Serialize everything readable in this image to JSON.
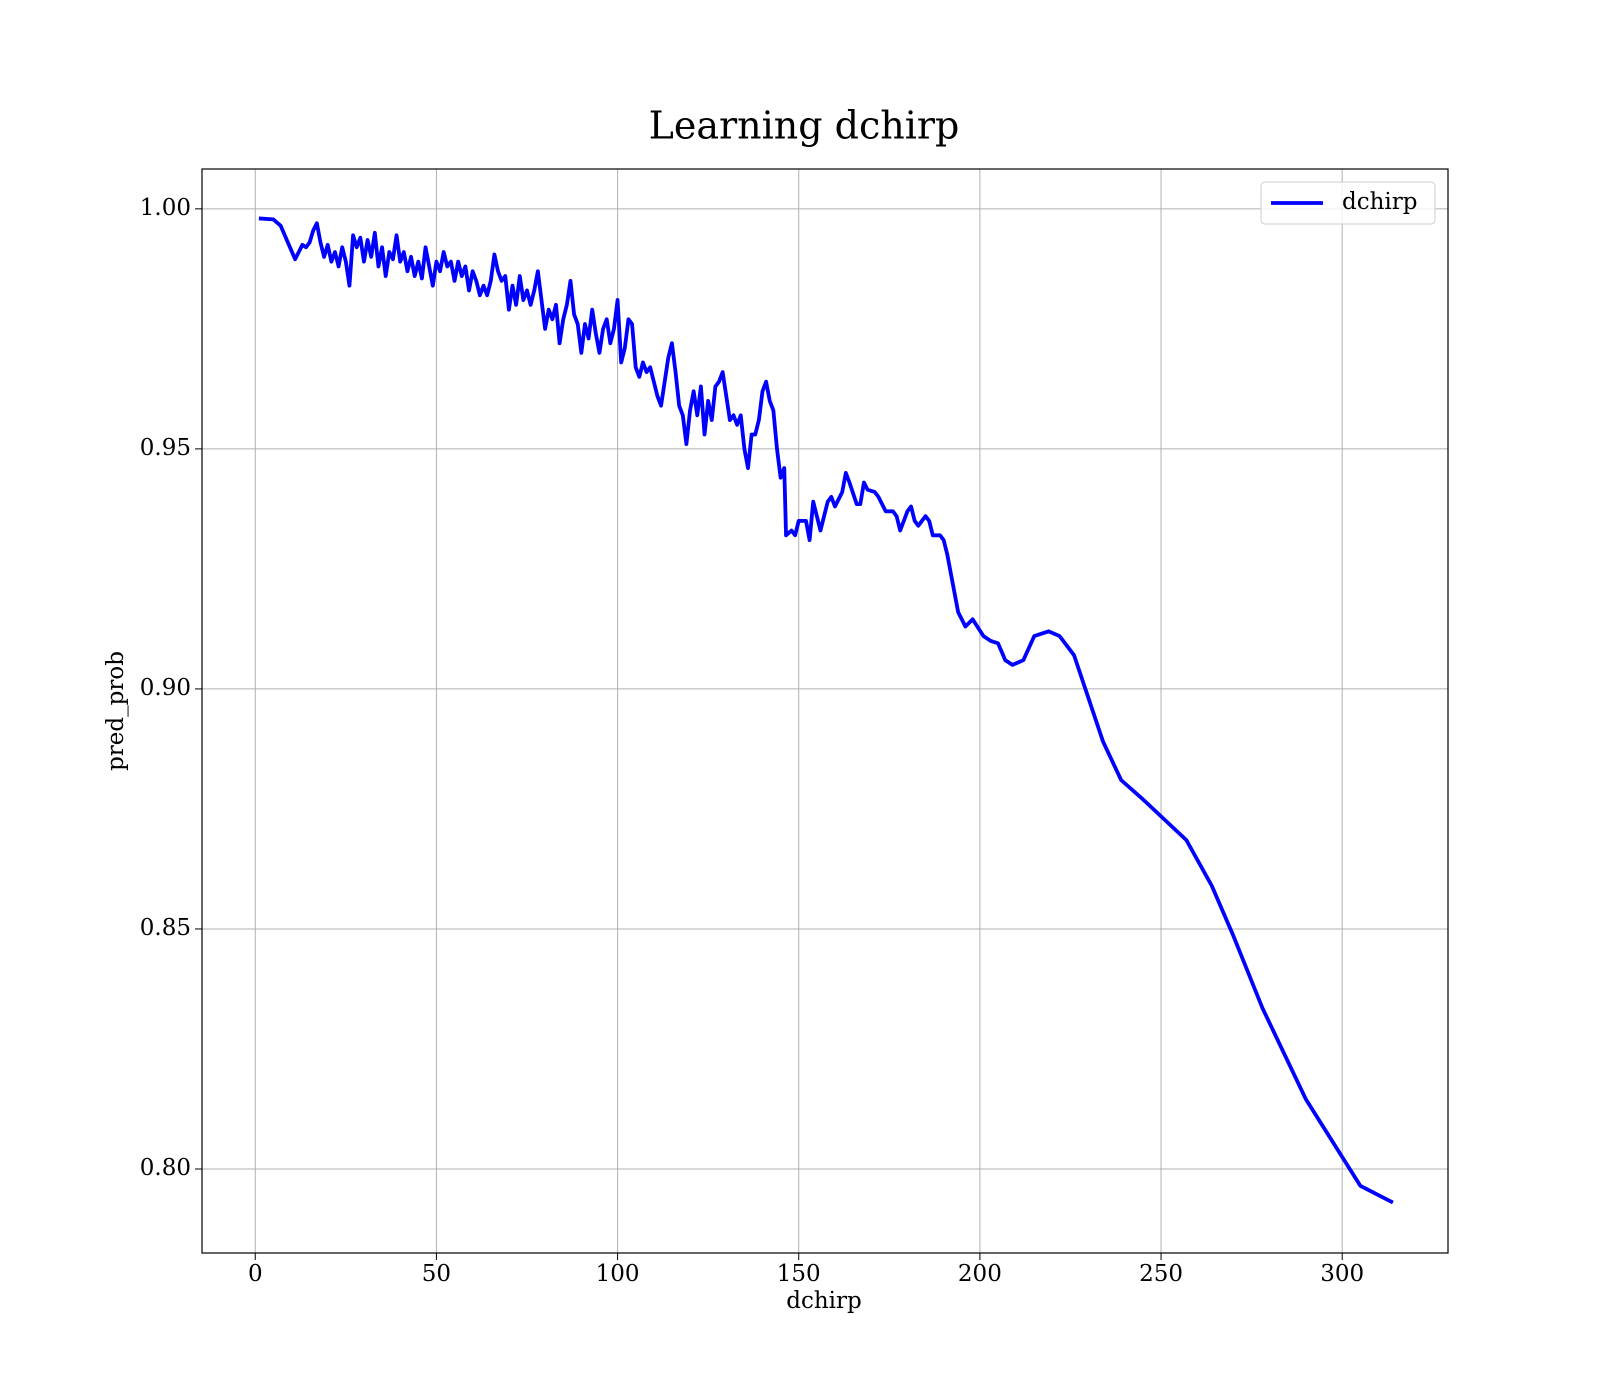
{
  "chart_data": {
    "type": "line",
    "title": "Learning dchirp",
    "xlabel": "dchirp",
    "ylabel": "pred_prob",
    "x": [
      1,
      5,
      7,
      9,
      11,
      12,
      13,
      14,
      15,
      16,
      17,
      18,
      19,
      20,
      21,
      22,
      23,
      24,
      25,
      26,
      27,
      28,
      29,
      30,
      31,
      32,
      33,
      34,
      35,
      36,
      37,
      38,
      39,
      40,
      41,
      42,
      43,
      44,
      45,
      46,
      47,
      48,
      49,
      50,
      51,
      52,
      53,
      54,
      55,
      56,
      57,
      58,
      59,
      60,
      61,
      62,
      63,
      64,
      65,
      66,
      67,
      68,
      69,
      70,
      71,
      72,
      73,
      74,
      75,
      76,
      77,
      78,
      79,
      80,
      81,
      82,
      83,
      84,
      85,
      86,
      87,
      88,
      89,
      90,
      91,
      92,
      93,
      94,
      95,
      96,
      97,
      98,
      99,
      100,
      101,
      102,
      103,
      104,
      105,
      106,
      107,
      108,
      109,
      110,
      111,
      112,
      113,
      114,
      115,
      116,
      117,
      118,
      119,
      120,
      121,
      122,
      123,
      124,
      125,
      126,
      127,
      128,
      129,
      130,
      131,
      132,
      133,
      134,
      135,
      136,
      137,
      138,
      139,
      140,
      141,
      142,
      143,
      144,
      145,
      146,
      146.5,
      148,
      149,
      150,
      152,
      153,
      154,
      156,
      158,
      159,
      160,
      162,
      163,
      164,
      166,
      167,
      168,
      169,
      171,
      172,
      174,
      176,
      177,
      178,
      180,
      181,
      182,
      183,
      185,
      186,
      187,
      189,
      190,
      191,
      194,
      196,
      198,
      201,
      203,
      205,
      207,
      209,
      212,
      215,
      219,
      222,
      226,
      230,
      234,
      239,
      245,
      257,
      264,
      270,
      278,
      290,
      305,
      314
    ],
    "series": [
      {
        "name": "dchirp",
        "color": "#0000ff",
        "values": [
          0.998,
          0.9978,
          0.9965,
          0.993,
          0.9895,
          0.991,
          0.9925,
          0.992,
          0.993,
          0.9955,
          0.997,
          0.993,
          0.99,
          0.9925,
          0.989,
          0.991,
          0.988,
          0.992,
          0.989,
          0.984,
          0.9945,
          0.992,
          0.994,
          0.989,
          0.9935,
          0.99,
          0.995,
          0.988,
          0.992,
          0.986,
          0.991,
          0.9895,
          0.9945,
          0.989,
          0.991,
          0.987,
          0.99,
          0.986,
          0.989,
          0.9855,
          0.992,
          0.988,
          0.984,
          0.989,
          0.987,
          0.991,
          0.988,
          0.989,
          0.985,
          0.989,
          0.986,
          0.988,
          0.983,
          0.987,
          0.985,
          0.982,
          0.984,
          0.982,
          0.985,
          0.9905,
          0.987,
          0.985,
          0.986,
          0.979,
          0.984,
          0.98,
          0.986,
          0.981,
          0.983,
          0.98,
          0.983,
          0.987,
          0.981,
          0.975,
          0.979,
          0.977,
          0.98,
          0.972,
          0.977,
          0.98,
          0.985,
          0.978,
          0.976,
          0.97,
          0.976,
          0.973,
          0.979,
          0.974,
          0.97,
          0.975,
          0.977,
          0.972,
          0.975,
          0.981,
          0.968,
          0.971,
          0.977,
          0.976,
          0.967,
          0.965,
          0.968,
          0.966,
          0.967,
          0.964,
          0.961,
          0.959,
          0.964,
          0.969,
          0.972,
          0.966,
          0.959,
          0.957,
          0.951,
          0.958,
          0.962,
          0.957,
          0.963,
          0.953,
          0.96,
          0.956,
          0.963,
          0.964,
          0.966,
          0.961,
          0.956,
          0.957,
          0.955,
          0.957,
          0.95,
          0.946,
          0.953,
          0.953,
          0.956,
          0.962,
          0.964,
          0.96,
          0.958,
          0.95,
          0.944,
          0.946,
          0.932,
          0.933,
          0.932,
          0.935,
          0.935,
          0.931,
          0.939,
          0.933,
          0.939,
          0.94,
          0.938,
          0.941,
          0.945,
          0.943,
          0.9385,
          0.9385,
          0.943,
          0.9415,
          0.941,
          0.94,
          0.937,
          0.937,
          0.936,
          0.933,
          0.937,
          0.938,
          0.935,
          0.934,
          0.936,
          0.935,
          0.932,
          0.932,
          0.931,
          0.928,
          0.916,
          0.913,
          0.9145,
          0.911,
          0.91,
          0.9095,
          0.906,
          0.905,
          0.906,
          0.911,
          0.912,
          0.911,
          0.907,
          0.898,
          0.889,
          0.881,
          0.877,
          0.8685,
          0.859,
          0.8485,
          0.8335,
          0.8145,
          0.7965,
          0.793
        ]
      }
    ],
    "xlim": [
      -14.7,
      329.2
    ],
    "ylim": [
      0.7825,
      1.0083
    ],
    "xticks": [
      0,
      50,
      100,
      150,
      200,
      250,
      300
    ],
    "yticks": [
      {
        "value": 0.8,
        "label": "0.80"
      },
      0.85,
      {
        "value": 0.9,
        "label": "0.90"
      },
      0.95,
      {
        "value": 1,
        "label": "1.00"
      }
    ],
    "grid": true,
    "legend": "upper right"
  }
}
